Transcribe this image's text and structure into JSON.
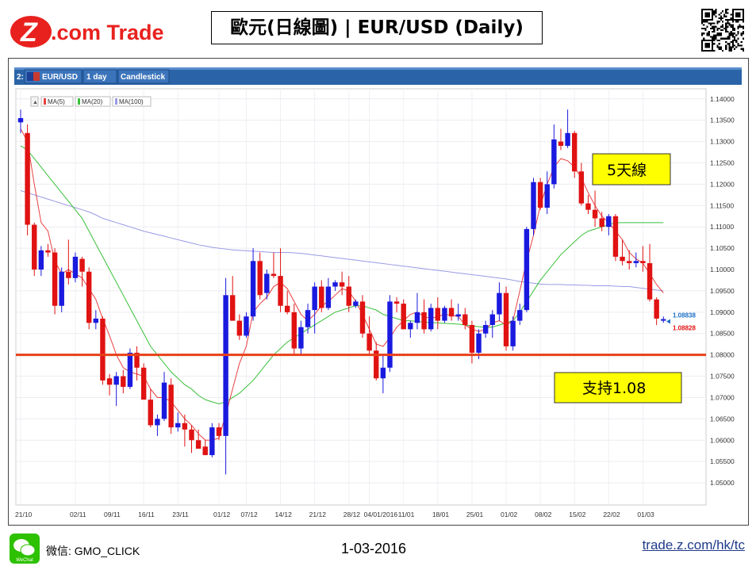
{
  "header": {
    "logo_z": "Z",
    "logo_text": ".com Trade",
    "title": "歐元(日線圖) | EUR/USD (Daily)"
  },
  "toolbar": {
    "index": "2:",
    "symbol": "EUR/USD",
    "interval": "1 day",
    "chart_style": "Candlestick"
  },
  "legend": [
    "MA(5)",
    "MA(20)",
    "MA(100)"
  ],
  "annotations": {
    "ma5_label": "5天線",
    "support_label": "支持1.08",
    "price_tag_blue": "1.08838",
    "price_tag_red": "1.08828"
  },
  "footer": {
    "wechat_label": "WeChat",
    "handle": "微信: GMO_CLICK",
    "date": "1-03-2016",
    "url": "trade.z.com/hk/tc"
  },
  "colors": {
    "up": "#1a1adf",
    "down": "#e01212",
    "ma5": "#e84040",
    "ma20": "#39c03a",
    "ma100": "#9a9ae6",
    "support": "#e8401a",
    "annotation_bg": "#ffff00",
    "brand_red": "#e8211e"
  },
  "chart_data": {
    "type": "candlestick",
    "ylim": [
      1.045,
      1.142
    ],
    "y_ticks": [
      1.14,
      1.135,
      1.13,
      1.125,
      1.12,
      1.115,
      1.11,
      1.105,
      1.1,
      1.095,
      1.09,
      1.085,
      1.08,
      1.075,
      1.07,
      1.065,
      1.06,
      1.055,
      1.05
    ],
    "x_tick_labels": [
      {
        "label": "21/10",
        "index": 0
      },
      {
        "label": "02/11",
        "index": 8
      },
      {
        "label": "09/11",
        "index": 13
      },
      {
        "label": "16/11",
        "index": 18
      },
      {
        "label": "23/11",
        "index": 23
      },
      {
        "label": "01/12",
        "index": 29
      },
      {
        "label": "07/12",
        "index": 33
      },
      {
        "label": "14/12",
        "index": 38
      },
      {
        "label": "21/12",
        "index": 43
      },
      {
        "label": "28/12",
        "index": 48
      },
      {
        "label": "04/01/2016",
        "index": 51
      },
      {
        "label": "11/01",
        "index": 56
      },
      {
        "label": "18/01",
        "index": 61
      },
      {
        "label": "25/01",
        "index": 66
      },
      {
        "label": "01/02",
        "index": 71
      },
      {
        "label": "08/02",
        "index": 76
      },
      {
        "label": "15/02",
        "index": 81
      },
      {
        "label": "22/02",
        "index": 86
      },
      {
        "label": "01/03",
        "index": 91
      }
    ],
    "ohlc": [
      [
        1.1345,
        1.1375,
        1.132,
        1.1355
      ],
      [
        1.132,
        1.134,
        1.108,
        1.1105
      ],
      [
        1.1105,
        1.111,
        1.0985,
        1.1
      ],
      [
        1.1,
        1.1055,
        1.0985,
        1.1045
      ],
      [
        1.1045,
        1.106,
        1.103,
        1.104
      ],
      [
        1.104,
        1.105,
        1.0895,
        1.0915
      ],
      [
        1.0915,
        1.1005,
        1.09,
        1.0995
      ],
      [
        1.0995,
        1.107,
        1.0965,
        1.098
      ],
      [
        1.098,
        1.104,
        1.097,
        1.103
      ],
      [
        1.1025,
        1.103,
        1.096,
        1.0995
      ],
      [
        1.0995,
        1.1005,
        1.086,
        1.0875
      ],
      [
        1.0875,
        1.0905,
        1.086,
        1.0885
      ],
      [
        1.0885,
        1.089,
        1.073,
        1.074
      ],
      [
        1.0745,
        1.0755,
        1.0705,
        1.073
      ],
      [
        1.073,
        1.076,
        1.068,
        1.075
      ],
      [
        1.075,
        1.0765,
        1.071,
        1.0725
      ],
      [
        1.0725,
        1.0815,
        1.072,
        1.0805
      ],
      [
        1.0805,
        1.082,
        1.074,
        1.077
      ],
      [
        1.077,
        1.078,
        1.07,
        1.0695
      ],
      [
        1.0695,
        1.072,
        1.063,
        1.0635
      ],
      [
        1.0635,
        1.066,
        1.061,
        1.065
      ],
      [
        1.065,
        1.076,
        1.0645,
        1.0735
      ],
      [
        1.073,
        1.0745,
        1.0615,
        1.063
      ],
      [
        1.063,
        1.0665,
        1.062,
        1.064
      ],
      [
        1.064,
        1.066,
        1.0585,
        1.0625
      ],
      [
        1.0625,
        1.0635,
        1.057,
        1.06
      ],
      [
        1.06,
        1.0625,
        1.058,
        1.058
      ],
      [
        1.0585,
        1.06,
        1.0565,
        1.0565
      ],
      [
        1.0565,
        1.064,
        1.056,
        1.063
      ],
      [
        1.063,
        1.064,
        1.06,
        1.061
      ],
      [
        1.061,
        1.098,
        1.052,
        1.094
      ],
      [
        1.094,
        1.0985,
        1.088,
        1.088
      ],
      [
        1.088,
        1.0895,
        1.0835,
        1.0845
      ],
      [
        1.0845,
        1.09,
        1.084,
        1.089
      ],
      [
        1.089,
        1.105,
        1.088,
        1.102
      ],
      [
        1.102,
        1.104,
        1.093,
        1.094
      ],
      [
        1.0945,
        1.1,
        1.093,
        1.099
      ],
      [
        1.099,
        1.104,
        1.098,
        1.0985
      ],
      [
        1.0985,
        1.105,
        1.09,
        1.0915
      ],
      [
        1.0915,
        1.095,
        1.0895,
        1.09
      ],
      [
        1.09,
        1.092,
        1.08,
        1.0815
      ],
      [
        1.0815,
        1.088,
        1.08,
        1.0865
      ],
      [
        1.0865,
        1.092,
        1.085,
        1.0905
      ],
      [
        1.0905,
        1.097,
        1.085,
        1.096
      ],
      [
        1.096,
        1.0975,
        1.09,
        1.091
      ],
      [
        1.091,
        1.098,
        1.0905,
        1.096
      ],
      [
        1.096,
        1.0975,
        1.095,
        1.097
      ],
      [
        1.097,
        1.0995,
        1.094,
        1.096
      ],
      [
        1.096,
        1.0985,
        1.09,
        1.0915
      ],
      [
        1.0915,
        1.093,
        1.091,
        1.0925
      ],
      [
        1.0925,
        1.094,
        1.084,
        1.085
      ],
      [
        1.085,
        1.089,
        1.08,
        1.081
      ],
      [
        1.081,
        1.083,
        1.074,
        1.0745
      ],
      [
        1.0745,
        1.08,
        1.071,
        1.077
      ],
      [
        1.077,
        1.094,
        1.076,
        1.0925
      ],
      [
        1.0925,
        1.0935,
        1.09,
        1.092
      ],
      [
        1.092,
        1.093,
        1.086,
        1.086
      ],
      [
        1.086,
        1.088,
        1.084,
        1.0875
      ],
      [
        1.0875,
        1.0945,
        1.086,
        1.09
      ],
      [
        1.09,
        1.093,
        1.085,
        1.086
      ],
      [
        1.086,
        1.092,
        1.0855,
        1.091
      ],
      [
        1.091,
        1.0935,
        1.086,
        1.088
      ],
      [
        1.088,
        1.0915,
        1.0875,
        1.091
      ],
      [
        1.091,
        1.093,
        1.088,
        1.089
      ],
      [
        1.089,
        1.092,
        1.088,
        1.0895
      ],
      [
        1.0895,
        1.091,
        1.086,
        1.087
      ],
      [
        1.087,
        1.088,
        1.078,
        1.0805
      ],
      [
        1.0805,
        1.086,
        1.079,
        1.085
      ],
      [
        1.085,
        1.088,
        1.084,
        1.087
      ],
      [
        1.087,
        1.0905,
        1.084,
        1.0895
      ],
      [
        1.0895,
        1.097,
        1.088,
        1.0945
      ],
      [
        1.0945,
        1.096,
        1.081,
        1.082
      ],
      [
        1.082,
        1.089,
        1.081,
        1.088
      ],
      [
        1.088,
        1.092,
        1.087,
        1.0905
      ],
      [
        1.0905,
        1.11,
        1.09,
        1.1095
      ],
      [
        1.1095,
        1.1215,
        1.108,
        1.1205
      ],
      [
        1.1205,
        1.1215,
        1.114,
        1.1145
      ],
      [
        1.1145,
        1.123,
        1.113,
        1.12
      ],
      [
        1.12,
        1.134,
        1.119,
        1.1305
      ],
      [
        1.13,
        1.133,
        1.128,
        1.129
      ],
      [
        1.129,
        1.1375,
        1.1285,
        1.132
      ],
      [
        1.132,
        1.1325,
        1.1215,
        1.123
      ],
      [
        1.123,
        1.125,
        1.115,
        1.1155
      ],
      [
        1.1155,
        1.1175,
        1.113,
        1.114
      ],
      [
        1.114,
        1.1185,
        1.11,
        1.112
      ],
      [
        1.112,
        1.1135,
        1.109,
        1.11
      ],
      [
        1.11,
        1.113,
        1.108,
        1.1125
      ],
      [
        1.1125,
        1.113,
        1.102,
        1.103
      ],
      [
        1.103,
        1.107,
        1.101,
        1.102
      ],
      [
        1.102,
        1.1045,
        1.1,
        1.1015
      ],
      [
        1.1015,
        1.104,
        1.1005,
        1.102
      ],
      [
        1.102,
        1.1055,
        1.0995,
        1.1015
      ],
      [
        1.1015,
        1.106,
        1.0925,
        1.093
      ],
      [
        1.093,
        1.0935,
        1.087,
        1.0885
      ],
      [
        1.088,
        1.089,
        1.0875,
        1.08838
      ]
    ],
    "ma5": [
      1.133,
      1.13,
      1.12,
      1.111,
      1.109,
      1.102,
      1.099,
      1.1,
      1.099,
      1.098,
      1.0955,
      1.093,
      1.0885,
      1.0845,
      1.08,
      1.077,
      1.076,
      1.0755,
      1.075,
      1.072,
      1.07,
      1.07,
      1.069,
      1.067,
      1.065,
      1.0635,
      1.0615,
      1.06,
      1.06,
      1.0605,
      1.066,
      1.072,
      1.078,
      1.082,
      1.09,
      1.092,
      1.0935,
      1.096,
      1.097,
      1.0955,
      1.0925,
      1.0895,
      1.088,
      1.0895,
      1.0915,
      1.0925,
      1.094,
      1.0955,
      1.095,
      1.0925,
      1.0895,
      1.086,
      1.0825,
      1.082,
      1.084,
      1.0865,
      1.088,
      1.0895,
      1.09,
      1.089,
      1.0885,
      1.089,
      1.0895,
      1.0893,
      1.089,
      1.087,
      1.086,
      1.0855,
      1.086,
      1.0875,
      1.088,
      1.087,
      1.088,
      1.095,
      1.102,
      1.108,
      1.115,
      1.12,
      1.124,
      1.126,
      1.1255,
      1.124,
      1.1215,
      1.118,
      1.115,
      1.1125,
      1.111,
      1.109,
      1.107,
      1.104,
      1.1025,
      1.1015,
      1.099,
      1.0965,
      1.0945
    ],
    "ma20": [
      1.129,
      1.128,
      1.126,
      1.124,
      1.122,
      1.12,
      1.118,
      1.116,
      1.114,
      1.112,
      1.109,
      1.106,
      1.103,
      1.1,
      1.097,
      1.094,
      1.091,
      1.088,
      1.085,
      1.082,
      1.08,
      1.078,
      1.076,
      1.0745,
      1.073,
      1.072,
      1.0705,
      1.0695,
      1.069,
      1.0685,
      1.069,
      1.07,
      1.071,
      1.0725,
      1.074,
      1.076,
      1.078,
      1.08,
      1.0815,
      1.083,
      1.084,
      1.085,
      1.086,
      1.087,
      1.088,
      1.089,
      1.09,
      1.0905,
      1.091,
      1.0915,
      1.0915,
      1.091,
      1.0905,
      1.0895,
      1.089,
      1.0885,
      1.088,
      1.088,
      1.0878,
      1.0877,
      1.0876,
      1.0875,
      1.0874,
      1.0873,
      1.0872,
      1.087,
      1.0868,
      1.0866,
      1.0864,
      1.0865,
      1.087,
      1.0875,
      1.088,
      1.09,
      1.0925,
      1.095,
      1.0975,
      1.0995,
      1.1015,
      1.1035,
      1.105,
      1.1065,
      1.108,
      1.109,
      1.1095,
      1.11,
      1.1105,
      1.111,
      1.111,
      1.111,
      1.111,
      1.111,
      1.111,
      1.111,
      1.111
    ],
    "ma100": [
      1.1185,
      1.118,
      1.1175,
      1.117,
      1.1165,
      1.116,
      1.1155,
      1.115,
      1.1145,
      1.114,
      1.1135,
      1.1128,
      1.112,
      1.1115,
      1.111,
      1.1105,
      1.11,
      1.1095,
      1.109,
      1.1086,
      1.1082,
      1.1078,
      1.1074,
      1.107,
      1.1066,
      1.1062,
      1.1058,
      1.1055,
      1.1052,
      1.105,
      1.1048,
      1.1046,
      1.1045,
      1.1044,
      1.1043,
      1.1042,
      1.1041,
      1.104,
      1.104,
      1.104,
      1.1039,
      1.1038,
      1.1036,
      1.1034,
      1.1032,
      1.103,
      1.1028,
      1.1026,
      1.1024,
      1.1022,
      1.102,
      1.1018,
      1.1016,
      1.1014,
      1.1012,
      1.101,
      1.1008,
      1.1006,
      1.1004,
      1.1002,
      1.1,
      1.0998,
      1.0996,
      1.0994,
      1.0992,
      1.099,
      1.0988,
      1.0986,
      1.0984,
      1.0982,
      1.098,
      1.0978,
      1.0975,
      1.0972,
      1.097,
      1.0968,
      1.0966,
      1.0965,
      1.0965,
      1.0965,
      1.0964,
      1.0964,
      1.0963,
      1.0963,
      1.0962,
      1.0962,
      1.0962,
      1.0961,
      1.096,
      1.096,
      1.0958,
      1.0956,
      1.0954,
      1.0952,
      1.095
    ],
    "support_level": 1.08,
    "last_bid": 1.08838,
    "last_ask": 1.08828
  }
}
